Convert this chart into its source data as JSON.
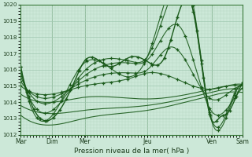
{
  "xlabel": "Pression niveau de la mer( hPa )",
  "bg_color": "#cce8d8",
  "grid_color_major": "#a0c8b0",
  "grid_color_minor": "#b8d8c4",
  "line_color": "#1a5a1a",
  "ylim": [
    1012,
    1020
  ],
  "yticks": [
    1012,
    1013,
    1014,
    1015,
    1016,
    1017,
    1018,
    1019,
    1020
  ],
  "day_labels": [
    "Mar",
    "Dim",
    "Mer",
    "Jeu",
    "Ven",
    "Sam"
  ],
  "day_x": [
    0.0,
    0.14,
    0.29,
    0.57,
    0.86,
    1.0
  ],
  "series": [
    {
      "points": [
        [
          0,
          1016.2
        ],
        [
          0.14,
          1013.0
        ],
        [
          0.29,
          1016.3
        ],
        [
          0.57,
          1015.8
        ],
        [
          0.75,
          1019.8
        ],
        [
          0.86,
          1013.0
        ],
        [
          0.93,
          1013.2
        ],
        [
          1.0,
          1015.0
        ]
      ],
      "has_markers": true
    },
    {
      "points": [
        [
          0,
          1015.8
        ],
        [
          0.14,
          1013.5
        ],
        [
          0.29,
          1015.8
        ],
        [
          0.57,
          1016.0
        ],
        [
          0.75,
          1019.5
        ],
        [
          0.86,
          1013.1
        ],
        [
          0.93,
          1013.3
        ],
        [
          1.0,
          1015.2
        ]
      ],
      "has_markers": true
    },
    {
      "points": [
        [
          0,
          1015.5
        ],
        [
          0.14,
          1014.0
        ],
        [
          0.29,
          1015.5
        ],
        [
          0.57,
          1015.5
        ],
        [
          0.75,
          1018.5
        ],
        [
          0.86,
          1014.0
        ],
        [
          0.93,
          1014.2
        ],
        [
          1.0,
          1015.0
        ]
      ],
      "has_markers": true
    },
    {
      "points": [
        [
          0,
          1015.3
        ],
        [
          0.14,
          1014.2
        ],
        [
          0.29,
          1015.2
        ],
        [
          0.57,
          1015.2
        ],
        [
          0.75,
          1017.5
        ],
        [
          0.86,
          1014.3
        ],
        [
          0.93,
          1014.5
        ],
        [
          1.0,
          1014.8
        ]
      ],
      "has_markers": true
    },
    {
      "points": [
        [
          0,
          1015.0
        ],
        [
          0.14,
          1014.4
        ],
        [
          0.29,
          1015.0
        ],
        [
          0.57,
          1014.8
        ],
        [
          0.75,
          1016.5
        ],
        [
          0.86,
          1014.5
        ],
        [
          0.93,
          1014.7
        ],
        [
          1.0,
          1014.7
        ]
      ],
      "has_markers": true
    },
    {
      "points": [
        [
          0,
          1014.5
        ],
        [
          0.14,
          1014.0
        ],
        [
          0.29,
          1014.5
        ],
        [
          0.57,
          1014.5
        ],
        [
          0.75,
          1015.5
        ],
        [
          0.86,
          1014.8
        ],
        [
          0.93,
          1015.0
        ],
        [
          1.0,
          1014.5
        ]
      ],
      "has_markers": false
    },
    {
      "points": [
        [
          0,
          1013.8
        ],
        [
          0.14,
          1013.2
        ],
        [
          0.29,
          1013.8
        ],
        [
          0.57,
          1014.0
        ],
        [
          0.75,
          1014.5
        ],
        [
          0.86,
          1015.0
        ],
        [
          0.93,
          1015.2
        ],
        [
          1.0,
          1014.3
        ]
      ],
      "has_markers": false
    },
    {
      "points": [
        [
          0,
          1013.2
        ],
        [
          0.14,
          1012.5
        ],
        [
          0.29,
          1013.2
        ],
        [
          0.57,
          1013.8
        ],
        [
          0.75,
          1014.0
        ],
        [
          0.86,
          1015.2
        ],
        [
          0.93,
          1015.3
        ],
        [
          1.0,
          1014.2
        ]
      ],
      "has_markers": false
    }
  ]
}
